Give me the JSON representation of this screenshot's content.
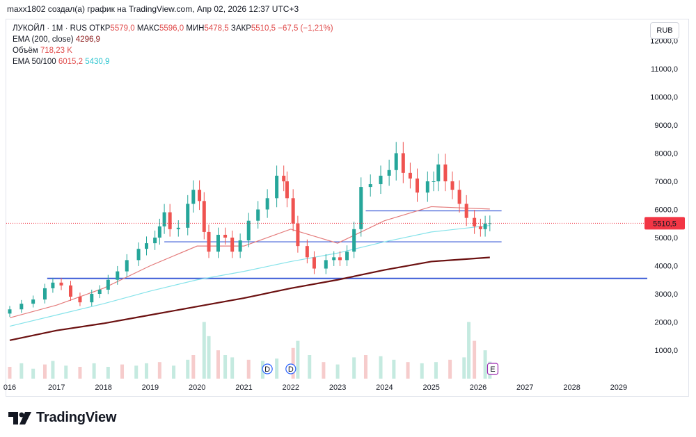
{
  "header": {
    "caption": "maxx1802 создал(а) график на TradingView.com, Апр 02, 2026 12:37 UTC+3"
  },
  "legend": {
    "symbol": "ЛУКОЙЛ · 1M · RUS",
    "open_label": "ОТКР",
    "open": "5579,0",
    "high_label": "МАКС",
    "high": "5596,0",
    "low_label": "МИН",
    "low": "5478,5",
    "close_label": "ЗАКР",
    "close": "5510,5",
    "change": "−67,5 (−1,21%)",
    "ema200_label": "EMA (200, close)",
    "ema200_value": "4296,9",
    "volume_label": "Объём",
    "volume_value": "718,23 K",
    "ema50_100_label": "EMA 50/100",
    "ema50_value": "6015,2",
    "ema100_value": "5430,9"
  },
  "currency": "RUB",
  "colors": {
    "up": "#26a69a",
    "down": "#ef5350",
    "ema200": "#6b1010",
    "ema50": "#e47b7b",
    "ema100": "#86e3ea",
    "hline": "#3b5bd6",
    "price_tag": "#f23645"
  },
  "events": {
    "dividend_label": "D",
    "earnings_label": "E"
  },
  "logo": {
    "text": "TradingView"
  },
  "chart_data": {
    "type": "candlestick",
    "interval": "1M",
    "ylim": [
      0,
      12500
    ],
    "y_ticks": [
      "1000,0",
      "2000,0",
      "3000,0",
      "4000,0",
      "5000,0",
      "6000,0",
      "7000,0",
      "8000,0",
      "9000,0",
      "10000,0",
      "11000,0",
      "12000,0"
    ],
    "y_tick_values": [
      1000,
      2000,
      3000,
      4000,
      5000,
      6000,
      7000,
      8000,
      9000,
      10000,
      11000,
      12000
    ],
    "x_ticks": [
      "016",
      "2017",
      "2018",
      "2019",
      "2020",
      "2021",
      "2022",
      "2023",
      "2024",
      "2025",
      "2026",
      "2027",
      "2028",
      "2029"
    ],
    "x_tick_values": [
      2016.0,
      2017.0,
      2018.0,
      2019.0,
      2020.0,
      2021.0,
      2022.0,
      2023.0,
      2024.0,
      2025.0,
      2026.0,
      2027.0,
      2028.0,
      2029.0
    ],
    "last_price": 5510.5,
    "last_price_label": "5510,5",
    "close_series": [
      [
        2016.0,
        2450
      ],
      [
        2016.25,
        2650
      ],
      [
        2016.5,
        2800
      ],
      [
        2016.75,
        3200
      ],
      [
        2016.92,
        3400
      ],
      [
        2017.1,
        3300
      ],
      [
        2017.3,
        2900
      ],
      [
        2017.5,
        2700
      ],
      [
        2017.75,
        3000
      ],
      [
        2017.92,
        3150
      ],
      [
        2018.1,
        3500
      ],
      [
        2018.3,
        3800
      ],
      [
        2018.5,
        4200
      ],
      [
        2018.75,
        4600
      ],
      [
        2018.92,
        4800
      ],
      [
        2019.1,
        5000
      ],
      [
        2019.2,
        5400
      ],
      [
        2019.3,
        5900
      ],
      [
        2019.42,
        5300
      ],
      [
        2019.6,
        5350
      ],
      [
        2019.8,
        6200
      ],
      [
        2019.92,
        6700
      ],
      [
        2020.05,
        6300
      ],
      [
        2020.15,
        5200
      ],
      [
        2020.25,
        4500
      ],
      [
        2020.45,
        5100
      ],
      [
        2020.6,
        5000
      ],
      [
        2020.75,
        4500
      ],
      [
        2020.92,
        4900
      ],
      [
        2021.1,
        5600
      ],
      [
        2021.3,
        6000
      ],
      [
        2021.5,
        6400
      ],
      [
        2021.7,
        7200
      ],
      [
        2021.85,
        7000
      ],
      [
        2021.92,
        6400
      ],
      [
        2022.05,
        5500
      ],
      [
        2022.15,
        4700
      ],
      [
        2022.35,
        4300
      ],
      [
        2022.5,
        3900
      ],
      [
        2022.75,
        4200
      ],
      [
        2022.92,
        4300
      ],
      [
        2023.05,
        4200
      ],
      [
        2023.2,
        4500
      ],
      [
        2023.35,
        5300
      ],
      [
        2023.5,
        6800
      ],
      [
        2023.7,
        6900
      ],
      [
        2023.92,
        7200
      ],
      [
        2024.1,
        7400
      ],
      [
        2024.25,
        8000
      ],
      [
        2024.4,
        7300
      ],
      [
        2024.55,
        7100
      ],
      [
        2024.7,
        6600
      ],
      [
        2024.92,
        7000
      ],
      [
        2025.05,
        7000
      ],
      [
        2025.15,
        7600
      ],
      [
        2025.3,
        7000
      ],
      [
        2025.45,
        6700
      ],
      [
        2025.6,
        6200
      ],
      [
        2025.75,
        5700
      ],
      [
        2025.92,
        5400
      ],
      [
        2026.05,
        5300
      ],
      [
        2026.15,
        5500
      ],
      [
        2026.25,
        5510.5
      ]
    ],
    "ema200": [
      [
        2016.0,
        1350
      ],
      [
        2017.0,
        1700
      ],
      [
        2018.0,
        1950
      ],
      [
        2019.0,
        2250
      ],
      [
        2020.0,
        2550
      ],
      [
        2021.0,
        2850
      ],
      [
        2022.0,
        3200
      ],
      [
        2023.0,
        3500
      ],
      [
        2024.0,
        3850
      ],
      [
        2025.0,
        4150
      ],
      [
        2026.25,
        4296.9
      ]
    ],
    "ema100": [
      [
        2016.0,
        1850
      ],
      [
        2017.0,
        2250
      ],
      [
        2018.0,
        2650
      ],
      [
        2019.0,
        3100
      ],
      [
        2020.0,
        3500
      ],
      [
        2021.0,
        3800
      ],
      [
        2022.0,
        4150
      ],
      [
        2023.0,
        4450
      ],
      [
        2024.0,
        4850
      ],
      [
        2025.0,
        5200
      ],
      [
        2026.25,
        5430.9
      ]
    ],
    "ema50": [
      [
        2016.0,
        2150
      ],
      [
        2017.0,
        2600
      ],
      [
        2018.0,
        3200
      ],
      [
        2019.0,
        4000
      ],
      [
        2020.0,
        4700
      ],
      [
        2021.0,
        4700
      ],
      [
        2022.0,
        5300
      ],
      [
        2023.0,
        4800
      ],
      [
        2024.0,
        5600
      ],
      [
        2025.0,
        6100
      ],
      [
        2026.25,
        6015.2
      ]
    ],
    "horizontal_levels": [
      {
        "price": 3550,
        "from": 2016.8,
        "to": 2029.7
      },
      {
        "price": 4850,
        "from": 2019.3,
        "to": 2026.5
      },
      {
        "price": 5950,
        "from": 2023.6,
        "to": 2026.5
      }
    ],
    "volume_k": [
      [
        2016.0,
        500
      ],
      [
        2016.25,
        650
      ],
      [
        2016.5,
        420
      ],
      [
        2016.75,
        600
      ],
      [
        2016.92,
        750
      ],
      [
        2017.2,
        550
      ],
      [
        2017.5,
        500
      ],
      [
        2017.8,
        650
      ],
      [
        2018.1,
        500
      ],
      [
        2018.4,
        600
      ],
      [
        2018.7,
        550
      ],
      [
        2018.92,
        650
      ],
      [
        2019.2,
        700
      ],
      [
        2019.5,
        550
      ],
      [
        2019.8,
        800
      ],
      [
        2019.92,
        1000
      ],
      [
        2020.15,
        2400
      ],
      [
        2020.25,
        1800
      ],
      [
        2020.45,
        1200
      ],
      [
        2020.6,
        1000
      ],
      [
        2020.75,
        900
      ],
      [
        2021.1,
        800
      ],
      [
        2021.4,
        750
      ],
      [
        2021.7,
        850
      ],
      [
        2022.05,
        1300
      ],
      [
        2022.15,
        1600
      ],
      [
        2022.4,
        1000
      ],
      [
        2022.7,
        700
      ],
      [
        2023.0,
        600
      ],
      [
        2023.35,
        900
      ],
      [
        2023.6,
        1000
      ],
      [
        2023.92,
        950
      ],
      [
        2024.2,
        800
      ],
      [
        2024.5,
        700
      ],
      [
        2024.8,
        650
      ],
      [
        2025.1,
        700
      ],
      [
        2025.4,
        800
      ],
      [
        2025.7,
        900
      ],
      [
        2025.8,
        2400
      ],
      [
        2025.92,
        1600
      ],
      [
        2026.15,
        1200
      ],
      [
        2026.25,
        718.23
      ]
    ]
  }
}
